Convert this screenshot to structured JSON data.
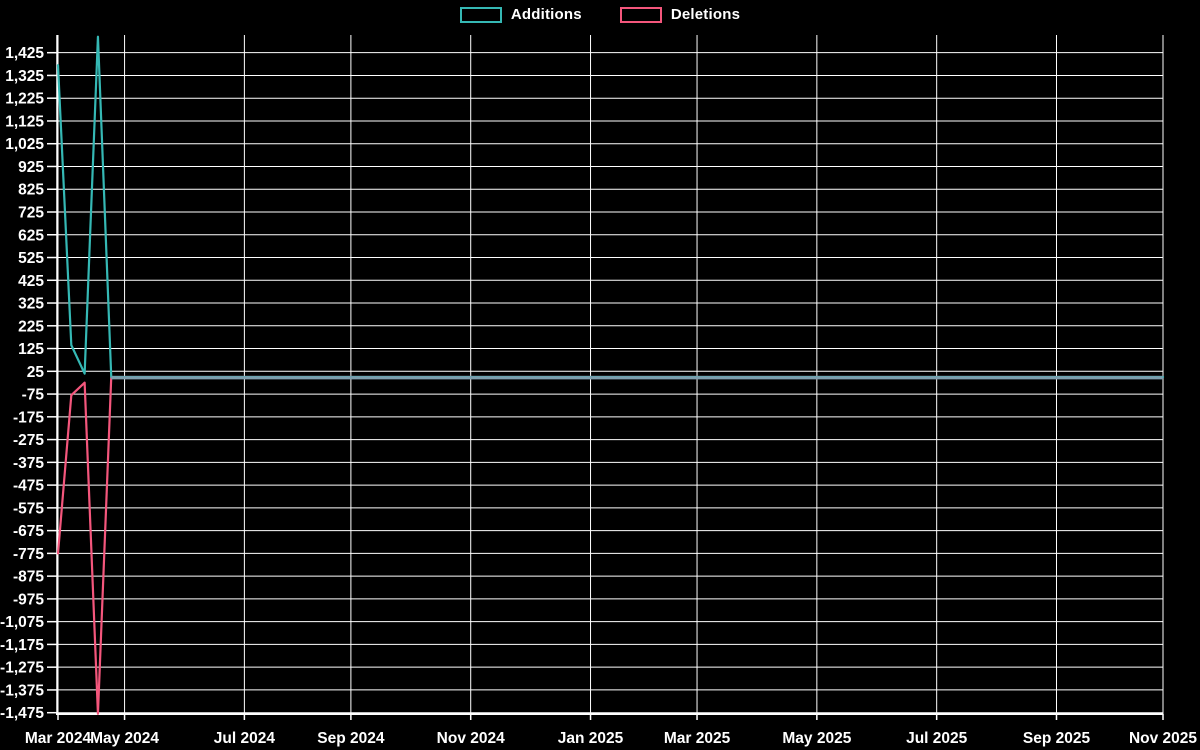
{
  "legend": {
    "items": [
      {
        "label": "Additions",
        "color": "#35b8b4"
      },
      {
        "label": "Deletions",
        "color": "#f4567c"
      }
    ]
  },
  "chart_data": {
    "type": "line",
    "title": "",
    "xlabel": "",
    "ylabel": "",
    "background": "#000000",
    "grid": true,
    "axis_color": "#ffffff",
    "legend_position": "top-center",
    "x_unit": "week-index",
    "x_weeks_total": 84,
    "x_ticks": [
      {
        "label": "Mar 2024",
        "week": 0
      },
      {
        "label": "May 2024",
        "week": 5
      },
      {
        "label": "Jul 2024",
        "week": 14
      },
      {
        "label": "Sep 2024",
        "week": 22
      },
      {
        "label": "Nov 2024",
        "week": 31
      },
      {
        "label": "Jan 2025",
        "week": 40
      },
      {
        "label": "Mar 2025",
        "week": 48
      },
      {
        "label": "May 2025",
        "week": 57
      },
      {
        "label": "Jul 2025",
        "week": 66
      },
      {
        "label": "Sep 2025",
        "week": 75
      },
      {
        "label": "Nov 2025",
        "week": 83
      }
    ],
    "y_ticks": [
      {
        "value": 1425,
        "label": "1,425"
      },
      {
        "value": 1325,
        "label": "1,325"
      },
      {
        "value": 1225,
        "label": "1,225"
      },
      {
        "value": 1125,
        "label": "1,125"
      },
      {
        "value": 1025,
        "label": "1,025"
      },
      {
        "value": 925,
        "label": "925"
      },
      {
        "value": 825,
        "label": "825"
      },
      {
        "value": 725,
        "label": "725"
      },
      {
        "value": 625,
        "label": "625"
      },
      {
        "value": 525,
        "label": "525"
      },
      {
        "value": 425,
        "label": "425"
      },
      {
        "value": 325,
        "label": "325"
      },
      {
        "value": 225,
        "label": "225"
      },
      {
        "value": 125,
        "label": "125"
      },
      {
        "value": 25,
        "label": "25"
      },
      {
        "value": -75,
        "label": "-75"
      },
      {
        "value": -175,
        "label": "-175"
      },
      {
        "value": -275,
        "label": "-275"
      },
      {
        "value": -375,
        "label": "-375"
      },
      {
        "value": -475,
        "label": "-475"
      },
      {
        "value": -575,
        "label": "-575"
      },
      {
        "value": -675,
        "label": "-675"
      },
      {
        "value": -775,
        "label": "-775"
      },
      {
        "value": -875,
        "label": "-875"
      },
      {
        "value": -975,
        "label": "-975"
      },
      {
        "value": -1075,
        "label": "-1,075"
      },
      {
        "value": -1175,
        "label": "-1,175"
      },
      {
        "value": -1275,
        "label": "-1,275"
      },
      {
        "value": -1375,
        "label": "-1,375"
      },
      {
        "value": -1475,
        "label": "-1,475"
      }
    ],
    "ylim": [
      -1484,
      1502
    ],
    "zero_overlap_color": "#7d9dad",
    "series": [
      {
        "name": "Additions",
        "color": "#35b8b4",
        "values": [
          1370,
          140,
          15,
          1495,
          0,
          0,
          0,
          0,
          0,
          0,
          0,
          0,
          0,
          0,
          0,
          0,
          0,
          0,
          0,
          0,
          0,
          0,
          0,
          0,
          0,
          0,
          0,
          0,
          0,
          0,
          0,
          0,
          0,
          0,
          0,
          0,
          0,
          0,
          0,
          0,
          0,
          0,
          0,
          0,
          0,
          0,
          0,
          0,
          0,
          0,
          0,
          0,
          0,
          0,
          0,
          0,
          0,
          0,
          0,
          0,
          0,
          0,
          0,
          0,
          0,
          0,
          0,
          0,
          0,
          0,
          0,
          0,
          0,
          0,
          0,
          0,
          0,
          0,
          0,
          0,
          0,
          0,
          0,
          0
        ]
      },
      {
        "name": "Deletions",
        "color": "#f4567c",
        "values": [
          -775,
          -80,
          -25,
          -1480,
          0,
          0,
          0,
          0,
          0,
          0,
          0,
          0,
          0,
          0,
          0,
          0,
          0,
          0,
          0,
          0,
          0,
          0,
          0,
          0,
          0,
          0,
          0,
          0,
          0,
          0,
          0,
          0,
          0,
          0,
          0,
          0,
          0,
          0,
          0,
          0,
          0,
          0,
          0,
          0,
          0,
          0,
          0,
          0,
          0,
          0,
          0,
          0,
          0,
          0,
          0,
          0,
          0,
          0,
          0,
          0,
          0,
          0,
          0,
          0,
          0,
          0,
          0,
          0,
          0,
          0,
          0,
          0,
          0,
          0,
          0,
          0,
          0,
          0,
          0,
          0,
          0,
          0,
          0,
          0
        ]
      }
    ]
  }
}
